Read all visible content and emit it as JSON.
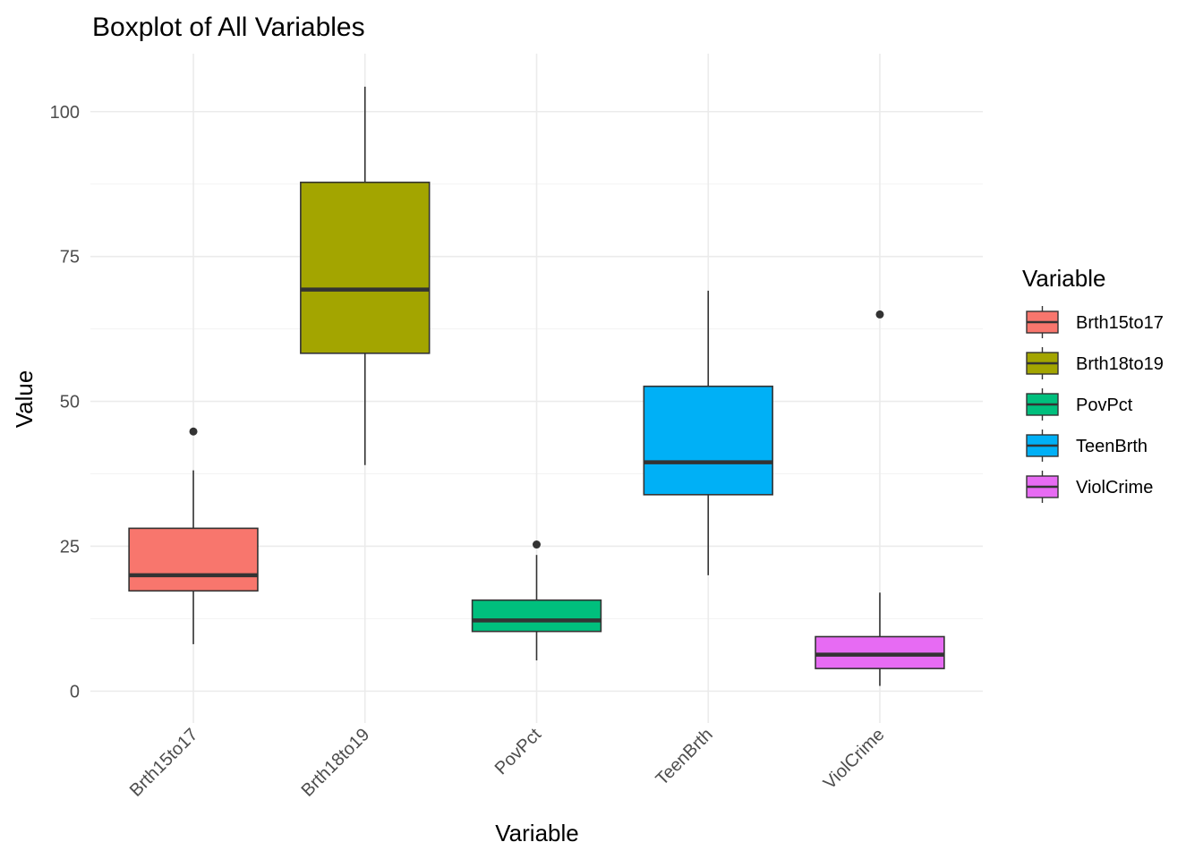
{
  "chart_data": {
    "type": "boxplot",
    "title": "Boxplot of All Variables",
    "xlabel": "Variable",
    "ylabel": "Value",
    "ylim": [
      -5.5,
      110
    ],
    "yticks": [
      0,
      25,
      50,
      75,
      100
    ],
    "yminor": [
      12.5,
      37.5,
      62.5,
      87.5
    ],
    "grid": true,
    "legend": {
      "title": "Variable",
      "placement": "right"
    },
    "series": [
      {
        "name": "Brth15to17",
        "color": "#F8766D",
        "whisker_low": 8.1,
        "q1": 17.3,
        "median": 20.0,
        "q3": 28.1,
        "whisker_high": 38.1,
        "outliers": [
          44.8
        ]
      },
      {
        "name": "Brth18to19",
        "color": "#A3A500",
        "whisker_low": 39.0,
        "q1": 58.3,
        "median": 69.3,
        "q3": 87.8,
        "whisker_high": 104.3,
        "outliers": []
      },
      {
        "name": "PovPct",
        "color": "#00BF7D",
        "whisker_low": 5.3,
        "q1": 10.3,
        "median": 12.2,
        "q3": 15.7,
        "whisker_high": 23.5,
        "outliers": [
          25.3
        ]
      },
      {
        "name": "TeenBrth",
        "color": "#00B0F6",
        "whisker_low": 20.0,
        "q1": 33.9,
        "median": 39.5,
        "q3": 52.6,
        "whisker_high": 69.1,
        "outliers": []
      },
      {
        "name": "ViolCrime",
        "color": "#E76BF3",
        "whisker_low": 0.9,
        "q1": 3.9,
        "median": 6.3,
        "q3": 9.4,
        "whisker_high": 17.0,
        "outliers": [
          65.0
        ]
      }
    ]
  }
}
